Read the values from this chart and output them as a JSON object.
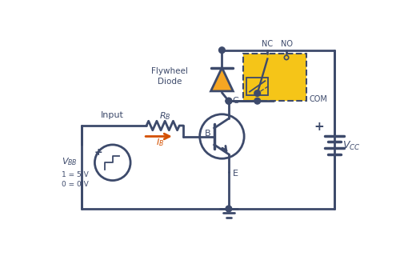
{
  "bg_color": "#ffffff",
  "line_color": "#3d4a6b",
  "line_width": 2.0,
  "relay_fill": "#f5c518",
  "relay_border": "#3d4a6b",
  "arrow_color": "#d45000",
  "dot_color": "#3d4a6b",
  "text_color": "#3d4a6b",
  "diode_fill": "#f5a623",
  "figsize": [
    5.0,
    3.3
  ],
  "dpi": 100,
  "xlim": [
    0,
    10
  ],
  "ylim": [
    0,
    6.6
  ]
}
